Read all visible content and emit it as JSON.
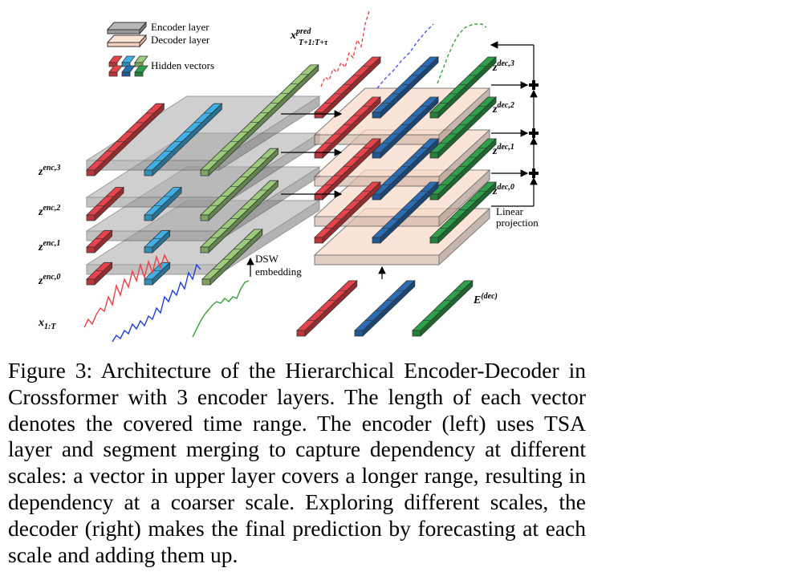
{
  "legend": {
    "encoder_layer": "Encoder layer",
    "decoder_layer": "Decoder layer",
    "hidden_vectors": "Hidden vectors"
  },
  "labels": {
    "z_enc_3": [
      "z",
      "enc,3"
    ],
    "z_enc_2": [
      "z",
      "enc,2"
    ],
    "z_enc_1": [
      "z",
      "enc,1"
    ],
    "z_enc_0": [
      "z",
      "enc,0"
    ],
    "x_input": [
      "x",
      "1:T"
    ],
    "x_pred": [
      "x",
      "pred",
      "T+1:T+τ"
    ],
    "z_dec_3": [
      "z",
      "dec,3"
    ],
    "z_dec_2": [
      "z",
      "dec,2"
    ],
    "z_dec_1": [
      "z",
      "dec,1"
    ],
    "z_dec_0": [
      "z",
      "dec,0"
    ],
    "dsw_line1": "DSW",
    "dsw_line2": "embedding",
    "linear_line1": "Linear",
    "linear_line2": "projection",
    "e_dec": [
      "E",
      "(dec)"
    ]
  },
  "caption": "Figure 3: Architecture of the Hierarchical Encoder-Decoder in Crossformer with 3 encoder layers. The length of each vector denotes the covered time range. The encoder (left) uses TSA layer and segment merging to capture dependency at different scales: a vector in upper layer covers a longer range, resulting in dependency at a coarser scale. Exploring different scales, the decoder (right) makes the final prediction by forecasting at each scale and adding them up.",
  "colors": {
    "red": "#e8434a",
    "blue_light": "#3fb0e6",
    "green_light": "#9ccc7a",
    "blue_dark": "#2a6db5",
    "green_dark": "#2ea04a",
    "encoder_layer": "#9b9b9b",
    "decoder_layer": "#f6d2bf"
  }
}
